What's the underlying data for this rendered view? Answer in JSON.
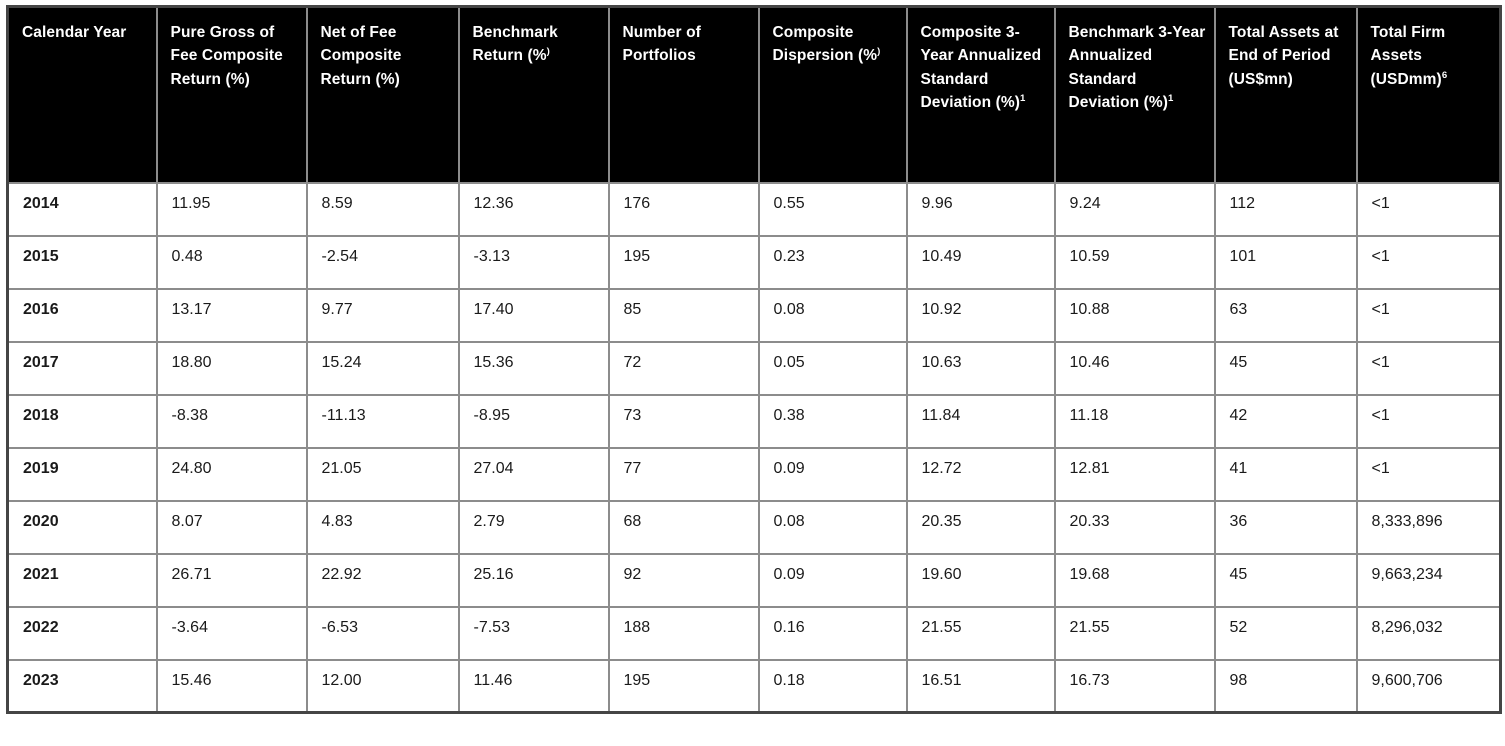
{
  "colors": {
    "header_bg": "#000000",
    "header_text": "#ffffff",
    "grid_line": "#8c8c8c",
    "outer_border": "#454545",
    "cell_bg": "#ffffff",
    "cell_text": "#1a1a1a"
  },
  "chart_data": {
    "type": "table",
    "columns": [
      {
        "label": "Calendar Year",
        "sup": ""
      },
      {
        "label": "Pure Gross of Fee Composite Return (%)",
        "sup": ""
      },
      {
        "label": "Net of Fee Composite Return (%)",
        "sup": ""
      },
      {
        "label": "Benchmark Return (%",
        "sup": ")"
      },
      {
        "label": "Number of Portfolios",
        "sup": ""
      },
      {
        "label": "Composite Dispersion (%",
        "sup": ")"
      },
      {
        "label": "Composite 3-Year Annualized Standard Deviation (%)",
        "sup": "1"
      },
      {
        "label": "Benchmark 3-Year Annualized Standard Deviation (%)",
        "sup": "1"
      },
      {
        "label": "Total Assets at End of Period (US$mn)",
        "sup": ""
      },
      {
        "label": "Total Firm Assets (USDmm)",
        "sup": "6"
      }
    ],
    "rows": [
      {
        "year": "2014",
        "values": [
          "11.95",
          "8.59",
          "12.36",
          "176",
          "0.55",
          "9.96",
          "9.24",
          "112",
          "<1"
        ]
      },
      {
        "year": "2015",
        "values": [
          "0.48",
          "-2.54",
          "-3.13",
          "195",
          "0.23",
          "10.49",
          "10.59",
          "101",
          "<1"
        ]
      },
      {
        "year": "2016",
        "values": [
          "13.17",
          "9.77",
          "17.40",
          "85",
          "0.08",
          "10.92",
          "10.88",
          "63",
          "<1"
        ]
      },
      {
        "year": "2017",
        "values": [
          "18.80",
          "15.24",
          "15.36",
          "72",
          "0.05",
          "10.63",
          "10.46",
          "45",
          "<1"
        ]
      },
      {
        "year": "2018",
        "values": [
          "-8.38",
          "-11.13",
          "-8.95",
          "73",
          "0.38",
          "11.84",
          "11.18",
          "42",
          "<1"
        ]
      },
      {
        "year": "2019",
        "values": [
          "24.80",
          "21.05",
          "27.04",
          "77",
          "0.09",
          "12.72",
          "12.81",
          "41",
          "<1"
        ]
      },
      {
        "year": "2020",
        "values": [
          "8.07",
          "4.83",
          "2.79",
          "68",
          "0.08",
          "20.35",
          "20.33",
          "36",
          "8,333,896"
        ]
      },
      {
        "year": "2021",
        "values": [
          "26.71",
          "22.92",
          "25.16",
          "92",
          "0.09",
          "19.60",
          "19.68",
          "45",
          "9,663,234"
        ]
      },
      {
        "year": "2022",
        "values": [
          "-3.64",
          "-6.53",
          "-7.53",
          "188",
          "0.16",
          "21.55",
          "21.55",
          "52",
          "8,296,032"
        ]
      },
      {
        "year": "2023",
        "values": [
          "15.46",
          "12.00",
          "11.46",
          "195",
          "0.18",
          "16.51",
          "16.73",
          "98",
          "9,600,706"
        ]
      }
    ]
  }
}
